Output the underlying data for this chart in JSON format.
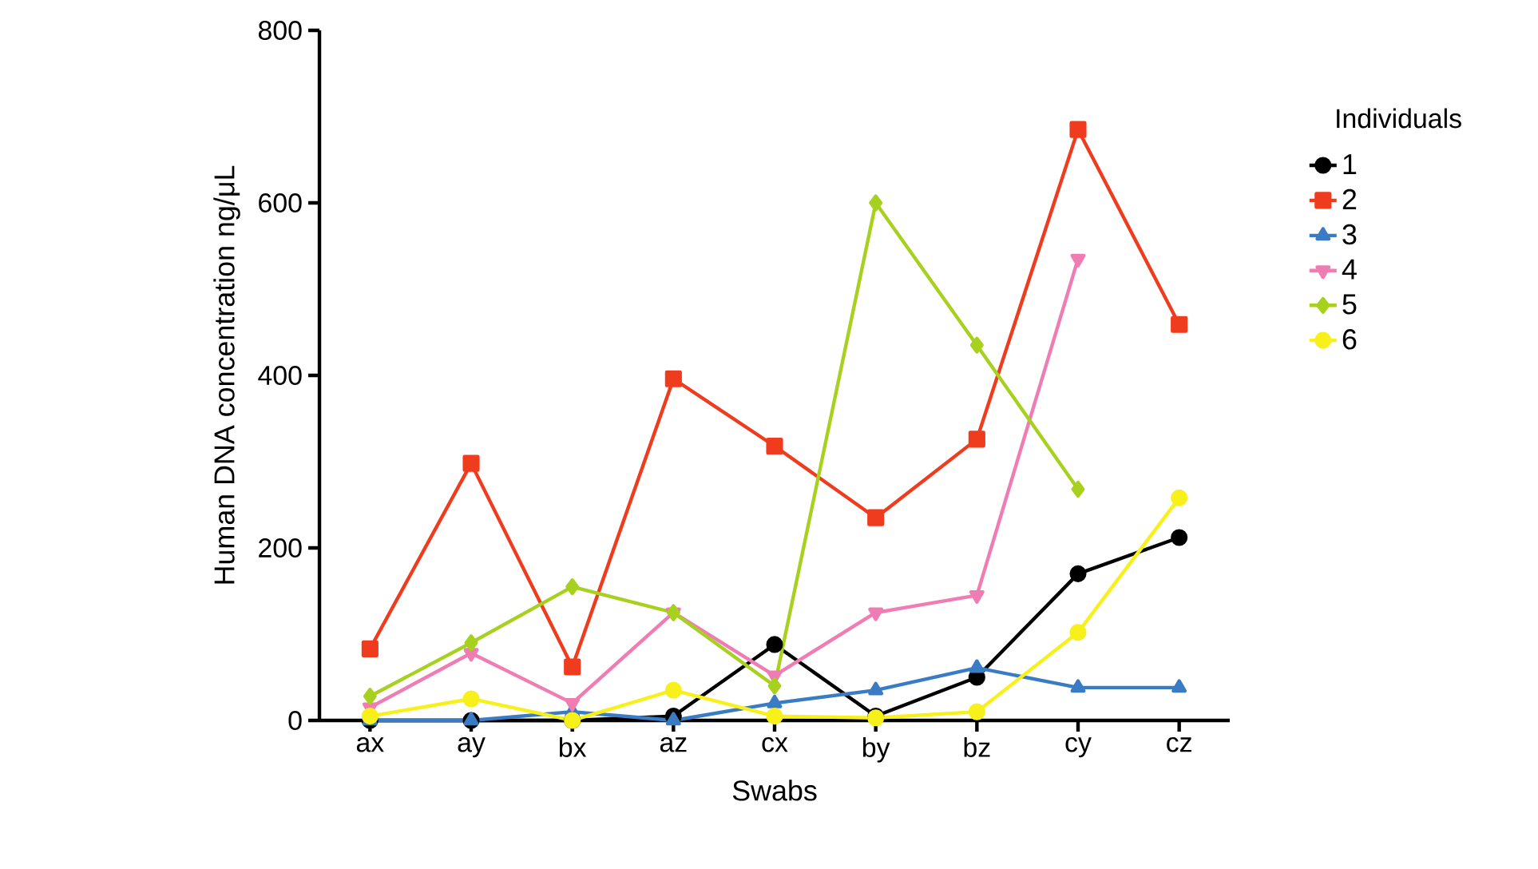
{
  "chart_data": {
    "type": "line",
    "xlabel": "Swabs",
    "ylabel": "Human DNA concentration ng/μL",
    "legend_title": "Individuals",
    "categories": [
      "ax",
      "ay",
      "bx",
      "az",
      "cx",
      "by",
      "bz",
      "cy",
      "cz"
    ],
    "ylim": [
      0,
      800
    ],
    "yticks": [
      0,
      200,
      400,
      600,
      800
    ],
    "grid": false,
    "legend": "right",
    "series": [
      {
        "name": "1",
        "color": "#000000",
        "marker": "circle",
        "values": [
          0,
          0,
          0,
          5,
          88,
          5,
          50,
          170,
          212
        ]
      },
      {
        "name": "2",
        "color": "#f03c1e",
        "marker": "square",
        "values": [
          83,
          298,
          62,
          396,
          318,
          235,
          326,
          685,
          459
        ]
      },
      {
        "name": "3",
        "color": "#3a7cc4",
        "marker": "triangle",
        "values": [
          0,
          0,
          10,
          0,
          20,
          35,
          61,
          38,
          38
        ]
      },
      {
        "name": "4",
        "color": "#f07cb4",
        "marker": "triangle-down",
        "values": [
          15,
          78,
          20,
          125,
          52,
          125,
          145,
          535,
          null
        ]
      },
      {
        "name": "5",
        "color": "#a8d01e",
        "marker": "diamond",
        "values": [
          28,
          90,
          155,
          125,
          40,
          600,
          435,
          268,
          null
        ]
      },
      {
        "name": "6",
        "color": "#f7f01a",
        "marker": "circle",
        "values": [
          5,
          25,
          0,
          35,
          5,
          3,
          10,
          102,
          258
        ]
      }
    ]
  }
}
